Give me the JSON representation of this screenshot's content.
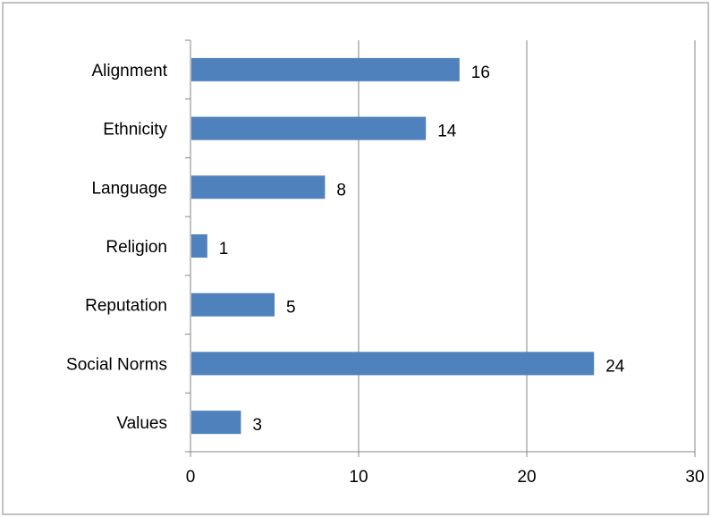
{
  "chart_data": {
    "type": "bar",
    "orientation": "horizontal",
    "categories": [
      "Alignment",
      "Ethnicity",
      "Language",
      "Religion",
      "Reputation",
      "Social Norms",
      "Values"
    ],
    "values": [
      16,
      14,
      8,
      1,
      5,
      24,
      3
    ],
    "xlim": [
      0,
      30
    ],
    "xticks": [
      0,
      10,
      20,
      30
    ],
    "grid": true,
    "legend": "none",
    "data_labels": true,
    "bar_color": "#4f81bd",
    "gridline_color": "#868686",
    "border_color": "#868686"
  }
}
